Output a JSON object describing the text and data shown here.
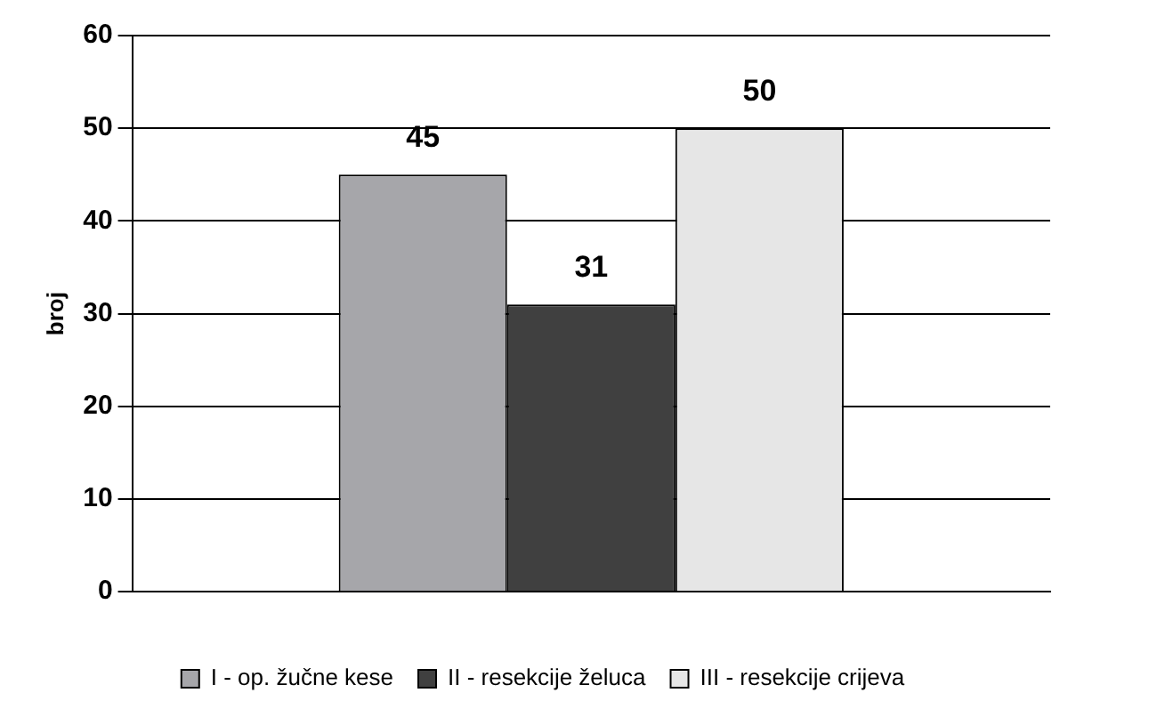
{
  "chart_data": {
    "type": "bar",
    "ylabel": "broj",
    "categories": [
      null
    ],
    "series": [
      {
        "name": "I - op. žučne kese",
        "color": "#a6a6aa",
        "values": [
          45
        ]
      },
      {
        "name": "II - resekcije želuca",
        "color": "#404040",
        "values": [
          31
        ]
      },
      {
        "name": "III - resekcije crijeva",
        "color": "#e6e6e6",
        "values": [
          50
        ]
      }
    ],
    "ylim": [
      0,
      60
    ],
    "yticks": [
      0,
      10,
      20,
      30,
      40,
      50,
      60
    ],
    "grid": "y",
    "legend": "bottom",
    "data_labels": true
  }
}
